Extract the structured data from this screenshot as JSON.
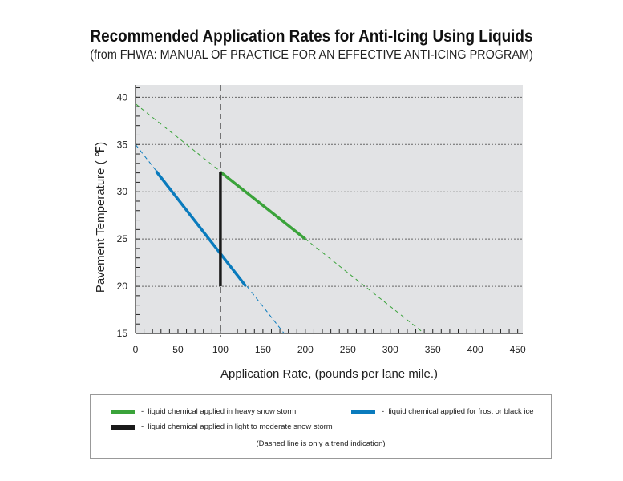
{
  "chart_data": {
    "type": "line",
    "title": "Recommended Application Rates for Anti-Icing Using Liquids",
    "subtitle": "(from FHWA: MANUAL OF PRACTICE FOR AN EFFECTIVE ANTI-ICING PROGRAM)",
    "xlabel": "Application Rate, (pounds per lane mile.)",
    "ylabel": "Pavement Temperature ( ℉)",
    "xlim": [
      0,
      456
    ],
    "ylim": [
      15,
      41.3
    ],
    "xticks": [
      0,
      50,
      100,
      150,
      200,
      250,
      300,
      350,
      400,
      450
    ],
    "yticks": [
      15,
      20,
      25,
      30,
      35,
      40
    ],
    "grid": "horizontal dotted",
    "reference_line": {
      "x": 100,
      "style": "dashed"
    },
    "series": [
      {
        "name": "liquid chemical applied in heavy snow storm",
        "color": "#3aa33a",
        "solid": [
          [
            100,
            32.1
          ],
          [
            200,
            25
          ]
        ],
        "trend": [
          [
            0,
            39.3
          ],
          [
            340,
            15
          ]
        ]
      },
      {
        "name": "liquid chemical applied for frost or black ice",
        "color": "#0a7bbd",
        "solid": [
          [
            24,
            32.2
          ],
          [
            130,
            20
          ]
        ],
        "trend": [
          [
            0,
            35
          ],
          [
            175,
            15
          ]
        ]
      },
      {
        "name": "liquid chemical applied in light to moderate snow storm",
        "color": "#1a1a1a",
        "solid": [
          [
            100,
            20
          ],
          [
            100,
            32.1
          ]
        ],
        "trend": []
      }
    ],
    "legend_position": "bottom",
    "note": "(Dashed line is only a trend indication)"
  }
}
